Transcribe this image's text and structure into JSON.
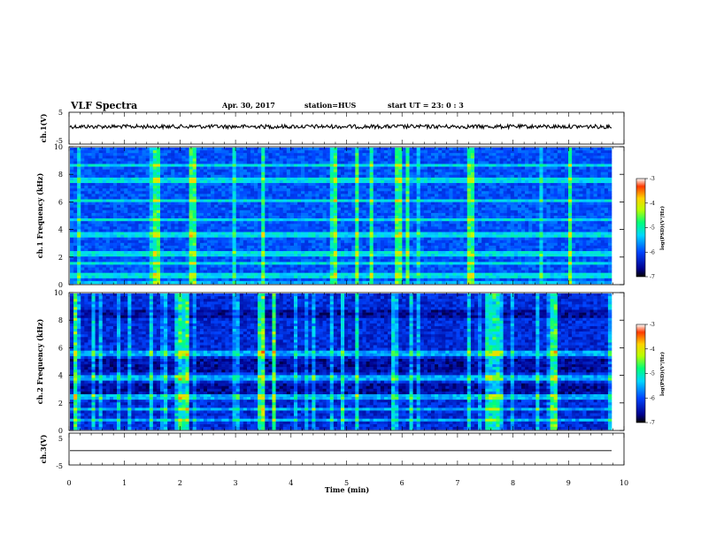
{
  "header": {
    "title": "VLF Spectra",
    "date": "Apr. 30, 2017",
    "station": "station=HUS",
    "start": "start  UT =  23: 0  : 3"
  },
  "chart_data": [
    {
      "type": "line",
      "panel": "ch.1 waveform",
      "ylabel": "ch.1(V)",
      "ylim": [
        -5,
        5
      ],
      "y_ticks": [
        "5",
        "-5"
      ],
      "series": [
        {
          "baseline_level": 0.5
        }
      ]
    },
    {
      "type": "heatmap",
      "panel": "ch.1 spectrogram",
      "ylabel": "ch.1 Frequency (kHz)",
      "ylim": [
        0,
        10
      ],
      "y_ticks": [
        "0",
        "2",
        "4",
        "6",
        "8",
        "10"
      ],
      "colorbar": {
        "label": "log(PSD)(V²/Hz)",
        "range": [
          -7,
          -3
        ],
        "ticks": [
          "-3",
          "-4",
          "-5",
          "-6",
          "-7"
        ]
      },
      "strong_times_min": [
        1.55,
        1.58,
        2.2,
        2.25,
        4.8,
        5.2,
        5.95,
        6.1,
        7.25,
        7.3,
        9.05
      ],
      "horizontal_lines_khz": [
        0.6,
        1.5,
        2.2,
        3.6,
        4.7,
        6.1,
        7.6,
        8.7
      ]
    },
    {
      "type": "heatmap",
      "panel": "ch.2 spectrogram",
      "ylabel": "ch.2 Frequency (kHz)",
      "ylim": [
        0,
        10
      ],
      "y_ticks": [
        "0",
        "2",
        "4",
        "6",
        "8",
        "10"
      ],
      "colorbar": {
        "label": "log(PSD)(V²/Hz)",
        "range": [
          -7,
          -3
        ],
        "ticks": [
          "-3",
          "-4",
          "-5",
          "-6",
          "-7"
        ]
      },
      "strong_bands_min": [
        [
          0.05,
          0.2
        ],
        [
          1.9,
          2.15
        ],
        [
          3.4,
          3.7
        ],
        [
          7.5,
          7.75
        ],
        [
          8.6,
          8.9
        ]
      ],
      "horizontal_lines_khz": [
        0.7,
        1.5,
        2.4,
        3.8,
        5.6
      ]
    },
    {
      "type": "line",
      "panel": "ch.3 waveform",
      "ylabel": "ch.3(V)",
      "xlabel": "Time (min)",
      "ylim": [
        -5,
        5
      ],
      "y_ticks": [
        "5",
        "-5"
      ],
      "xlim": [
        0,
        10
      ],
      "x_ticks": [
        "0",
        "1",
        "2",
        "3",
        "4",
        "5",
        "6",
        "7",
        "8",
        "9",
        "10"
      ],
      "series": [
        {
          "baseline_level": -0.5
        }
      ]
    }
  ]
}
